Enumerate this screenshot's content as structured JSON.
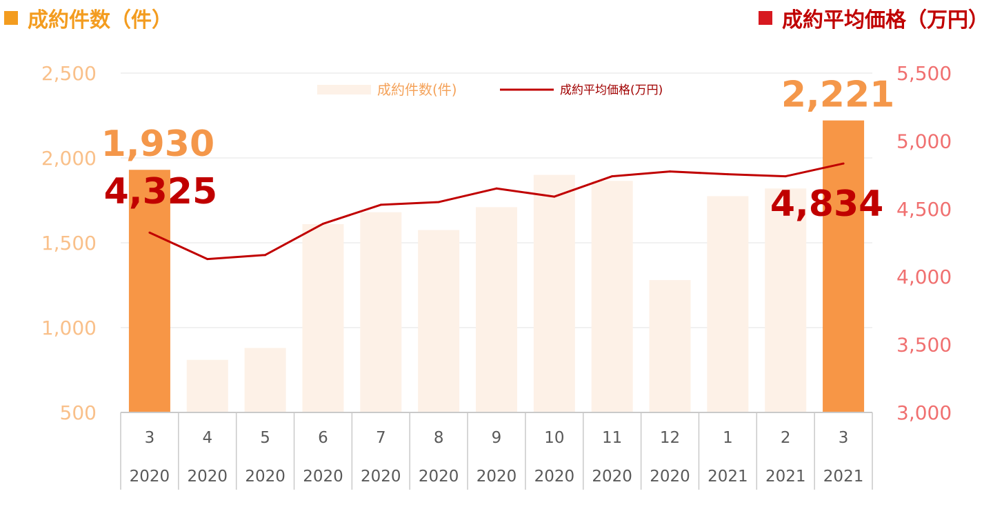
{
  "titles": {
    "left": "成約件数（件）",
    "right": "成約平均価格（万円）"
  },
  "colors": {
    "bar_highlight": "#f79646",
    "bar_muted": "#fdf1e7",
    "line": "#c00000",
    "left_title": "#f39c1f",
    "right_title": "#c00000"
  },
  "chart_data": {
    "type": "bar",
    "categories": [
      {
        "month": "3",
        "year": "2020"
      },
      {
        "month": "4",
        "year": "2020"
      },
      {
        "month": "5",
        "year": "2020"
      },
      {
        "month": "6",
        "year": "2020"
      },
      {
        "month": "7",
        "year": "2020"
      },
      {
        "month": "8",
        "year": "2020"
      },
      {
        "month": "9",
        "year": "2020"
      },
      {
        "month": "10",
        "year": "2020"
      },
      {
        "month": "11",
        "year": "2020"
      },
      {
        "month": "12",
        "year": "2020"
      },
      {
        "month": "1",
        "year": "2021"
      },
      {
        "month": "2",
        "year": "2021"
      },
      {
        "month": "3",
        "year": "2021"
      }
    ],
    "series": [
      {
        "name": "成約件数(件)",
        "type": "bar",
        "axis": "left",
        "values": [
          1930,
          810,
          880,
          1610,
          1680,
          1575,
          1710,
          1900,
          1865,
          1280,
          1775,
          1820,
          2221
        ],
        "highlight": [
          true,
          false,
          false,
          false,
          false,
          false,
          false,
          false,
          false,
          false,
          false,
          false,
          true
        ]
      },
      {
        "name": "成約平均価格(万円)",
        "type": "line",
        "axis": "right",
        "values": [
          4325,
          4130,
          4160,
          4390,
          4530,
          4550,
          4650,
          4590,
          4740,
          4775,
          4755,
          4740,
          4834
        ]
      }
    ],
    "y_left": {
      "min": 500,
      "max": 2500,
      "ticks": [
        "500",
        "1,000",
        "1,500",
        "2,000",
        "2,500"
      ]
    },
    "y_right": {
      "min": 3000,
      "max": 5500,
      "ticks": [
        "3,000",
        "3,500",
        "4,000",
        "4,500",
        "5,000",
        "5,500"
      ]
    },
    "callouts": {
      "bar_first": "1,930",
      "bar_last": "2,221",
      "line_first": "4,325",
      "line_last": "4,834"
    },
    "legend": {
      "placement": "top-center"
    },
    "grid": true
  }
}
